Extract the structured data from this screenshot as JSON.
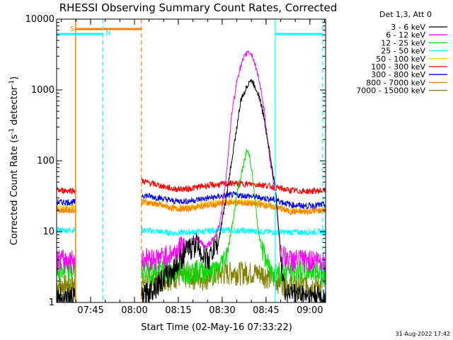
{
  "chart_data": {
    "type": "line",
    "title": "RHESSI Observing Summary Count Rates, Corrected",
    "xlabel": "Start Time (02-May-16 07:33:22)",
    "ylabel": "Corrected Count Rate (s⁻¹ detector⁻¹)",
    "ylabel_parts": [
      "Corrected Count Rate (s",
      "-1",
      " detector",
      "-1",
      ")"
    ],
    "y_scale": "log",
    "ylim": [
      1,
      10000
    ],
    "xlim_minutes_after_0733": [
      0,
      92
    ],
    "x_ticks": [
      {
        "label": "07:45",
        "minutes": 11.63
      },
      {
        "label": "08:00",
        "minutes": 26.63
      },
      {
        "label": "08:15",
        "minutes": 41.63
      },
      {
        "label": "08:30",
        "minutes": 56.63
      },
      {
        "label": "08:45",
        "minutes": 71.63
      },
      {
        "label": "09:00",
        "minutes": 86.63
      }
    ],
    "y_ticks": [
      {
        "label": "1",
        "value": 1
      },
      {
        "label": "10",
        "value": 10
      },
      {
        "label": "100",
        "value": 100
      },
      {
        "label": "1000",
        "value": 1000
      },
      {
        "label": "10000",
        "value": 10000
      }
    ],
    "legend": {
      "title": "Det 1,3, Att 0",
      "placement": "outside-right",
      "entries": [
        {
          "label": "3 - 6 keV",
          "color": "#000000"
        },
        {
          "label": "6 - 12 keV",
          "color": "#ff00ff"
        },
        {
          "label": "12 - 25 keV",
          "color": "#00e000"
        },
        {
          "label": "25 - 50 keV",
          "color": "#00ffff"
        },
        {
          "label": "50 - 100 keV",
          "color": "#ffcc00"
        },
        {
          "label": "100 - 300 keV",
          "color": "#ff0000"
        },
        {
          "label": "300 - 800 keV",
          "color": "#0000ff"
        },
        {
          "label": "800 - 7000 keV",
          "color": "#ff8000"
        },
        {
          "label": "7000 - 15000 keV",
          "color": "#808000"
        }
      ]
    },
    "annotations": [
      {
        "text": "S",
        "meaning": "SAA",
        "color": "#ff8000"
      },
      {
        "text": "N",
        "meaning": "Night",
        "color": "#00ffff"
      }
    ],
    "intervals": {
      "saa": [
        {
          "start_min": 6.5,
          "end_min": 29.0
        }
      ],
      "night": [
        {
          "start_min": 0.0,
          "end_min": 15.8
        },
        {
          "start_min": 74.8,
          "end_min": 91.0
        }
      ],
      "data_gaps": [
        {
          "start_min": 6.5,
          "end_min": 29.0
        }
      ]
    },
    "series": [
      {
        "name": "3 - 6 keV",
        "color": "#000000",
        "points": [
          [
            0,
            1.0
          ],
          [
            6.5,
            1.0
          ],
          [
            29,
            1.0
          ],
          [
            40,
            2.5
          ],
          [
            44,
            4.5
          ],
          [
            48,
            6
          ],
          [
            50,
            4
          ],
          [
            52,
            3.5
          ],
          [
            55,
            6
          ],
          [
            58,
            30
          ],
          [
            61,
            200
          ],
          [
            63,
            700
          ],
          [
            65,
            1100
          ],
          [
            66,
            1350
          ],
          [
            67,
            1300
          ],
          [
            69,
            900
          ],
          [
            71,
            400
          ],
          [
            73,
            120
          ],
          [
            75,
            35
          ],
          [
            76,
            10
          ],
          [
            77,
            3
          ],
          [
            78,
            1.2
          ],
          [
            92,
            1.0
          ]
        ]
      },
      {
        "name": "6 - 12 keV",
        "color": "#ff00ff",
        "points": [
          [
            0,
            3.4
          ],
          [
            6.5,
            3.4
          ],
          [
            29,
            3.6
          ],
          [
            35,
            3.6
          ],
          [
            40,
            4.2
          ],
          [
            44,
            6
          ],
          [
            48,
            8
          ],
          [
            51,
            6
          ],
          [
            54,
            8
          ],
          [
            56,
            14
          ],
          [
            58,
            60
          ],
          [
            60,
            500
          ],
          [
            62,
            1600
          ],
          [
            64,
            2800
          ],
          [
            65.5,
            3600
          ],
          [
            67,
            3000
          ],
          [
            69,
            1600
          ],
          [
            71,
            500
          ],
          [
            73,
            100
          ],
          [
            75,
            30
          ],
          [
            76,
            10
          ],
          [
            77,
            4
          ],
          [
            80,
            3.4
          ],
          [
            92,
            3.4
          ]
        ]
      },
      {
        "name": "12 - 25 keV",
        "color": "#00e000",
        "points": [
          [
            0,
            2.4
          ],
          [
            6.5,
            2.4
          ],
          [
            29,
            2.4
          ],
          [
            55,
            2.4
          ],
          [
            58,
            4
          ],
          [
            60,
            12
          ],
          [
            62,
            40
          ],
          [
            64,
            90
          ],
          [
            65,
            140
          ],
          [
            66,
            120
          ],
          [
            67,
            60
          ],
          [
            68,
            25
          ],
          [
            69,
            10
          ],
          [
            71,
            4
          ],
          [
            73,
            2.4
          ],
          [
            92,
            2.4
          ]
        ]
      },
      {
        "name": "25 - 50 keV",
        "color": "#00ffff",
        "points": [
          [
            0,
            10.5
          ],
          [
            6.5,
            10.5
          ],
          [
            29,
            10.5
          ],
          [
            35,
            10
          ],
          [
            40,
            9.5
          ],
          [
            45,
            9.8
          ],
          [
            50,
            10
          ],
          [
            55,
            10.5
          ],
          [
            58,
            10.5
          ],
          [
            62,
            10.3
          ],
          [
            65,
            10.2
          ],
          [
            70,
            10
          ],
          [
            75,
            9.8
          ],
          [
            80,
            9.8
          ],
          [
            85,
            9.8
          ],
          [
            92,
            10
          ]
        ]
      },
      {
        "name": "50 - 100 keV",
        "color": "#ffcc00",
        "points": [
          [
            0,
            22
          ],
          [
            6.5,
            22
          ],
          [
            29,
            26
          ],
          [
            35,
            24
          ],
          [
            40,
            22
          ],
          [
            45,
            22
          ],
          [
            50,
            24
          ],
          [
            55,
            26
          ],
          [
            60,
            27
          ],
          [
            65,
            26
          ],
          [
            70,
            25
          ],
          [
            75,
            22
          ],
          [
            80,
            20
          ],
          [
            85,
            20
          ],
          [
            92,
            21
          ]
        ]
      },
      {
        "name": "100 - 300 keV",
        "color": "#ff0000",
        "points": [
          [
            0,
            38
          ],
          [
            6.5,
            38
          ],
          [
            29,
            52
          ],
          [
            35,
            45
          ],
          [
            40,
            40
          ],
          [
            45,
            40
          ],
          [
            50,
            44
          ],
          [
            55,
            46
          ],
          [
            60,
            48
          ],
          [
            65,
            47
          ],
          [
            70,
            46
          ],
          [
            75,
            42
          ],
          [
            80,
            38
          ],
          [
            85,
            37
          ],
          [
            92,
            38
          ]
        ]
      },
      {
        "name": "300 - 800 keV",
        "color": "#0000ff",
        "points": [
          [
            0,
            26
          ],
          [
            6.5,
            26
          ],
          [
            29,
            33
          ],
          [
            35,
            30
          ],
          [
            40,
            27
          ],
          [
            45,
            27
          ],
          [
            50,
            29
          ],
          [
            55,
            31
          ],
          [
            60,
            33
          ],
          [
            65,
            32
          ],
          [
            70,
            30
          ],
          [
            75,
            28
          ],
          [
            80,
            24
          ],
          [
            85,
            23
          ],
          [
            92,
            24
          ]
        ]
      },
      {
        "name": "800 - 7000 keV",
        "color": "#ff8000",
        "points": [
          [
            0,
            20
          ],
          [
            6.5,
            20
          ],
          [
            29,
            27
          ],
          [
            35,
            24
          ],
          [
            40,
            21
          ],
          [
            45,
            21
          ],
          [
            50,
            23
          ],
          [
            55,
            24
          ],
          [
            60,
            26
          ],
          [
            65,
            25
          ],
          [
            70,
            24
          ],
          [
            75,
            22
          ],
          [
            80,
            19
          ],
          [
            85,
            19
          ],
          [
            92,
            20
          ]
        ]
      },
      {
        "name": "7000 - 15000 keV",
        "color": "#808000",
        "points": [
          [
            0,
            1.5
          ],
          [
            6.5,
            1.5
          ],
          [
            29,
            1.6
          ],
          [
            35,
            1.8
          ],
          [
            40,
            2.0
          ],
          [
            45,
            2.0
          ],
          [
            50,
            1.9
          ],
          [
            55,
            2.1
          ],
          [
            60,
            2.3
          ],
          [
            65,
            2.3
          ],
          [
            70,
            2.2
          ],
          [
            75,
            1.8
          ],
          [
            80,
            1.5
          ],
          [
            85,
            1.5
          ],
          [
            92,
            1.5
          ]
        ]
      }
    ]
  },
  "footer": {
    "date": "31-Aug-2022 17:42"
  }
}
